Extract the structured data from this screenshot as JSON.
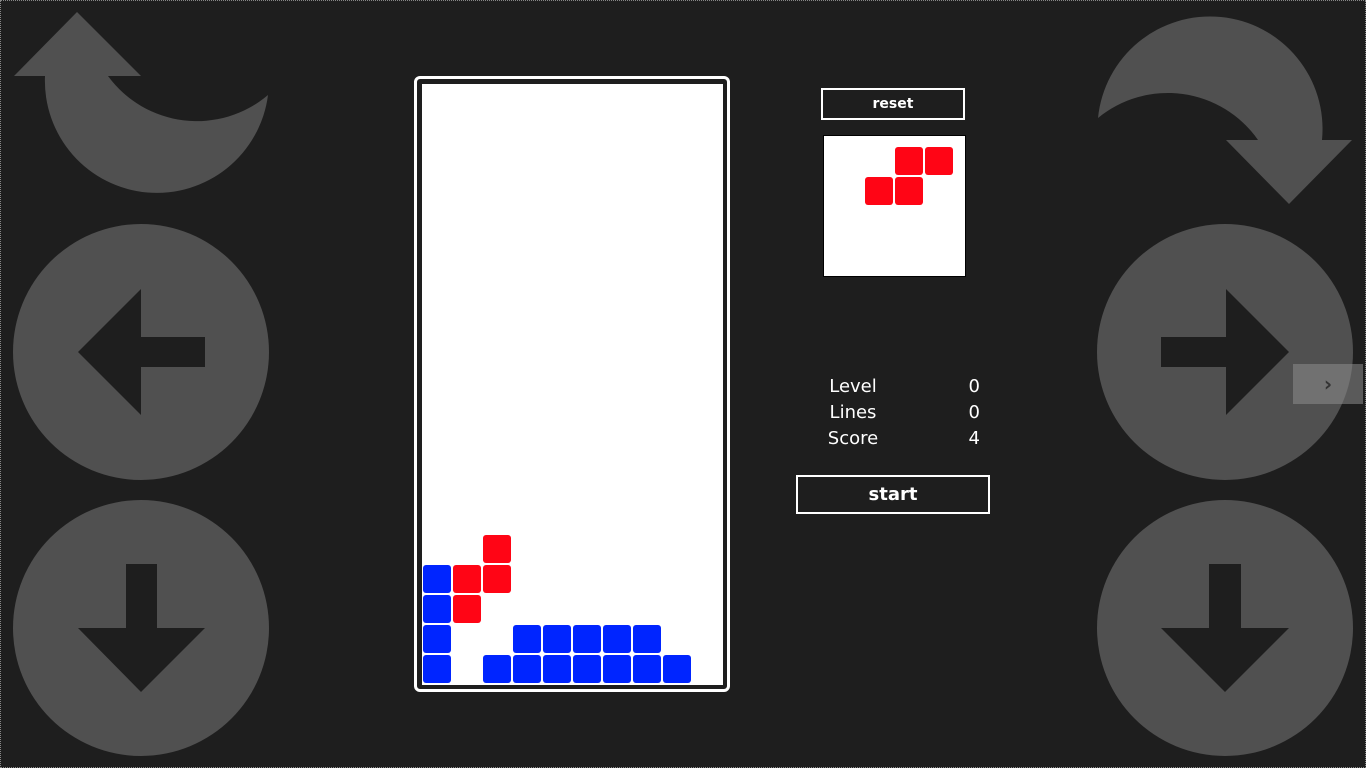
{
  "buttons": {
    "reset_label": "reset",
    "start_label": "start",
    "next_label": "›"
  },
  "stats": [
    {
      "label": "Level",
      "value": "0"
    },
    {
      "label": "Lines",
      "value": "0"
    },
    {
      "label": "Score",
      "value": "4"
    }
  ],
  "colors": {
    "background": "#1e1e1e",
    "control": "#505050",
    "red": "#ff0515",
    "blue": "#0025ff"
  },
  "controls": [
    "rotate-left-icon",
    "rotate-right-icon",
    "arrow-left-icon",
    "arrow-right-icon",
    "arrow-down-icon",
    "arrow-down-icon"
  ],
  "board": {
    "columns": 10,
    "rows": 20,
    "cells": [
      {
        "row": 15,
        "col": 2,
        "color": "red"
      },
      {
        "row": 16,
        "col": 0,
        "color": "blue"
      },
      {
        "row": 16,
        "col": 1,
        "color": "red"
      },
      {
        "row": 16,
        "col": 2,
        "color": "red"
      },
      {
        "row": 17,
        "col": 0,
        "color": "blue"
      },
      {
        "row": 17,
        "col": 1,
        "color": "red"
      },
      {
        "row": 18,
        "col": 0,
        "color": "blue"
      },
      {
        "row": 18,
        "col": 3,
        "color": "blue"
      },
      {
        "row": 18,
        "col": 4,
        "color": "blue"
      },
      {
        "row": 18,
        "col": 5,
        "color": "blue"
      },
      {
        "row": 18,
        "col": 6,
        "color": "blue"
      },
      {
        "row": 18,
        "col": 7,
        "color": "blue"
      },
      {
        "row": 19,
        "col": 0,
        "color": "blue"
      },
      {
        "row": 19,
        "col": 2,
        "color": "blue"
      },
      {
        "row": 19,
        "col": 3,
        "color": "blue"
      },
      {
        "row": 19,
        "col": 4,
        "color": "blue"
      },
      {
        "row": 19,
        "col": 5,
        "color": "blue"
      },
      {
        "row": 19,
        "col": 6,
        "color": "blue"
      },
      {
        "row": 19,
        "col": 7,
        "color": "blue"
      },
      {
        "row": 19,
        "col": 8,
        "color": "blue"
      }
    ]
  },
  "next_piece": {
    "cells": [
      {
        "row": 0,
        "col": 2,
        "color": "red"
      },
      {
        "row": 0,
        "col": 3,
        "color": "red"
      },
      {
        "row": 1,
        "col": 1,
        "color": "red"
      },
      {
        "row": 1,
        "col": 2,
        "color": "red"
      }
    ]
  }
}
